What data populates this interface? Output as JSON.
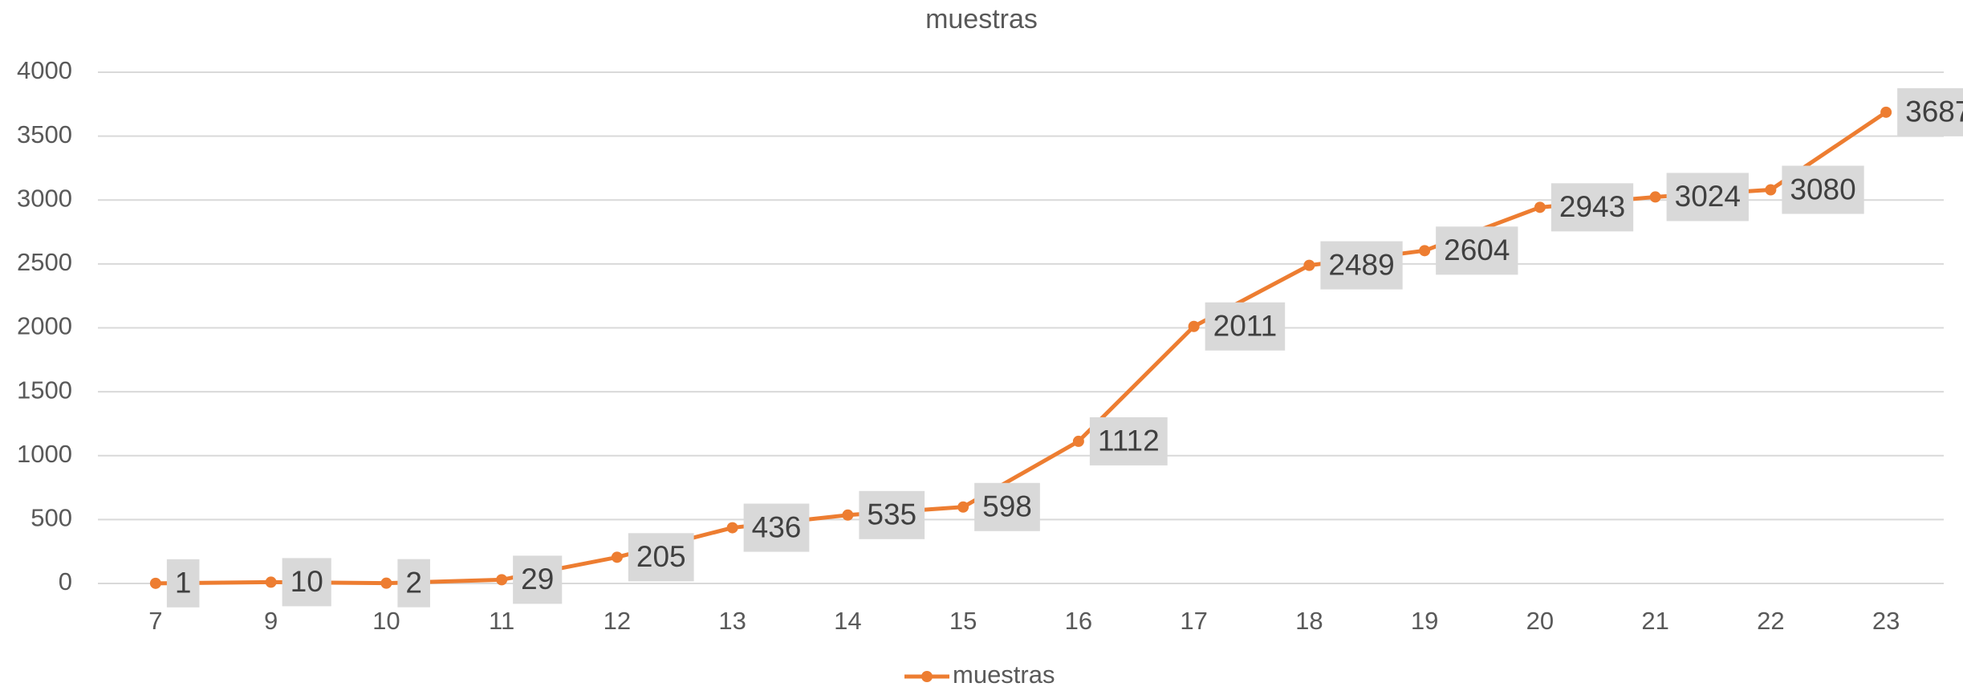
{
  "chart_data": {
    "type": "line",
    "title": "muestras",
    "categories": [
      "7",
      "9",
      "10",
      "11",
      "12",
      "13",
      "14",
      "15",
      "16",
      "17",
      "18",
      "19",
      "20",
      "21",
      "22",
      "23"
    ],
    "series": [
      {
        "name": "muestras",
        "color": "#ed7d31",
        "values": [
          1,
          10,
          2,
          29,
          205,
          436,
          535,
          598,
          1112,
          2011,
          2489,
          2604,
          2943,
          3024,
          3080,
          3687
        ]
      }
    ],
    "ylim": [
      0,
      4000
    ],
    "yticks": [
      0,
      500,
      1000,
      1500,
      2000,
      2500,
      3000,
      3500,
      4000
    ],
    "grid": true,
    "data_labels": true,
    "legend": "bottom"
  }
}
